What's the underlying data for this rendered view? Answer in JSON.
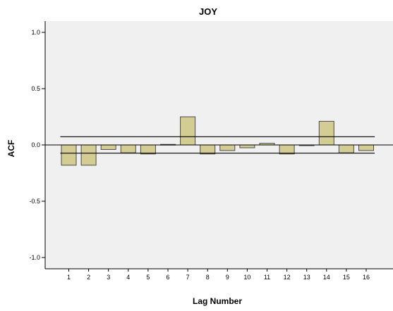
{
  "chart_data": {
    "type": "bar",
    "title": "JOY",
    "xlabel": "Lag Number",
    "ylabel": "ACF",
    "categories": [
      "1",
      "2",
      "3",
      "4",
      "5",
      "6",
      "7",
      "8",
      "9",
      "10",
      "11",
      "12",
      "13",
      "14",
      "15",
      "16"
    ],
    "values": [
      -0.18,
      -0.18,
      -0.04,
      -0.07,
      -0.08,
      0.005,
      0.25,
      -0.08,
      -0.05,
      -0.025,
      0.015,
      -0.08,
      -0.005,
      0.21,
      -0.07,
      -0.05
    ],
    "ylim": [
      -1.1,
      1.1
    ],
    "yticks": [
      1.0,
      0.5,
      0.0,
      -0.5,
      -1.0
    ],
    "ytick_labels": [
      "1.0",
      "0.5",
      "0.0",
      "-0.5",
      "-1.0"
    ],
    "confidence_limits": {
      "upper": 0.073,
      "lower": -0.073
    },
    "grid": false,
    "colors": {
      "plot_background": "#f0f0f0",
      "bar_fill": "#d3cd94",
      "bar_stroke": "#4a4a4a",
      "lines": "#000000"
    }
  }
}
